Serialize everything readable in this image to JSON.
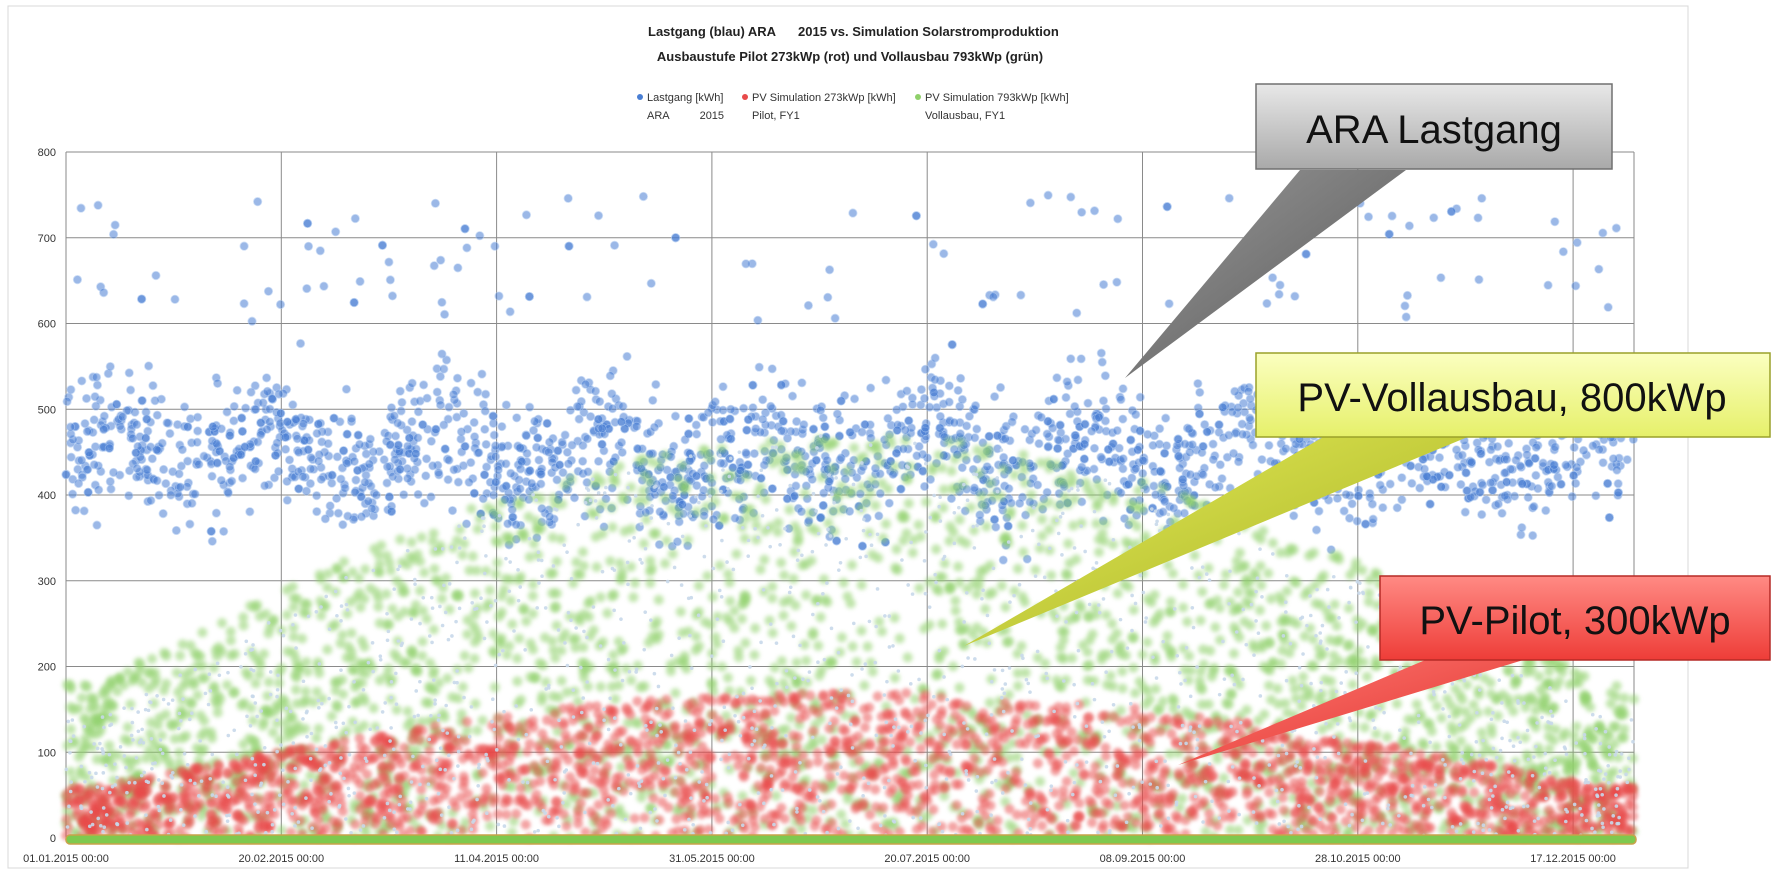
{
  "chart_data": {
    "type": "scatter",
    "title_line1_left": "Lastgang (blau) ARA",
    "title_line1_right": "2015 vs. Simulation Solarstromproduktion",
    "title_line2": "Ausbaustufe Pilot 273kWp (rot)  und Vollausbau 793kWp (grün)",
    "xlabel": "",
    "ylabel": "",
    "ylim": [
      0,
      800
    ],
    "yticks": [
      "0",
      "100",
      "200",
      "300",
      "400",
      "500",
      "600",
      "700",
      "800"
    ],
    "xticks": [
      "01.01.2015 00:00",
      "20.02.2015 00:00",
      "11.04.2015 00:00",
      "31.05.2015 00:00",
      "20.07.2015 00:00",
      "08.09.2015 00:00",
      "28.10.2015 00:00",
      "17.12.2015 00:00"
    ],
    "grid": true,
    "legend_placement": "top-center",
    "legend": [
      {
        "line1": "Lastgang [kWh]",
        "line2": "ARA          2015",
        "color": "#4a7fd4"
      },
      {
        "line1": "PV Simulation 273kWp [kWh]",
        "line2": "Pilot, FY1",
        "color": "#e84a4a"
      },
      {
        "line1": "PV Simulation 793kWp [kWh]",
        "line2": "Vollausbau, FY1",
        "color": "#8fd06a"
      }
    ],
    "series": [
      {
        "name": "Lastgang [kWh] ARA 2015",
        "color": "#4a7fd4",
        "typical_range": [
          220,
          600
        ],
        "median": 450,
        "max": 750
      },
      {
        "name": "PV Simulation 273kWp [kWh] Pilot, FY1",
        "color": "#e84a4a",
        "typical_range": [
          0,
          150
        ],
        "max": 170
      },
      {
        "name": "PV Simulation 793kWp [kWh] Vollausbau, FY1",
        "color": "#8fd06a",
        "typical_range": [
          0,
          450
        ],
        "max": 470
      }
    ],
    "annotations": [
      {
        "text": "ARA Lastgang",
        "color": "#c8c8c8"
      },
      {
        "text": "PV-Vollausbau, 800kWp",
        "color": "#f2f98e"
      },
      {
        "text": "PV-Pilot, 300kWp",
        "color": "#f25a55"
      }
    ]
  }
}
